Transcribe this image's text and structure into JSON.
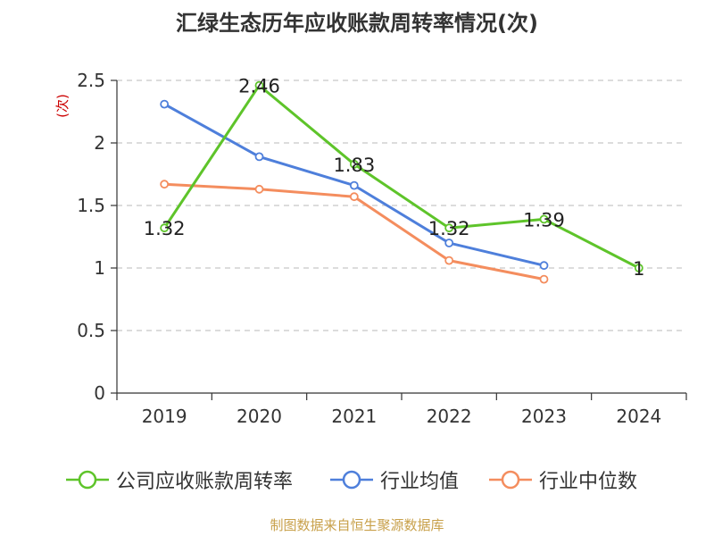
{
  "title": "汇绿生态历年应收账款周转率情况(次)",
  "source": "制图数据来自恒生聚源数据库",
  "colors": {
    "company": "#5ec42a",
    "industry_avg": "#4e7fdb",
    "industry_median": "#f48d5e",
    "grid": "#c8c8c8",
    "axis": "#333333",
    "ylabel": "#cc0000"
  },
  "chart_data": {
    "type": "line",
    "title": "汇绿生态历年应收账款周转率情况(次)",
    "xlabel": "",
    "ylabel": "(次)",
    "categories": [
      "2019",
      "2020",
      "2021",
      "2022",
      "2023",
      "2024"
    ],
    "ylim": [
      0,
      2.5
    ],
    "yticks": [
      "0",
      "0.5",
      "1",
      "1.5",
      "2",
      "2.5"
    ],
    "grid": true,
    "legend_position": "bottom",
    "series": [
      {
        "name": "公司应收账款周转率",
        "key": "company",
        "values": [
          1.32,
          2.46,
          1.83,
          1.32,
          1.39,
          1.0
        ],
        "labels": [
          "1.32",
          "2.46",
          "1.83",
          "1.32",
          "1.39",
          "1"
        ]
      },
      {
        "name": "行业均值",
        "key": "industry_avg",
        "values": [
          2.31,
          1.89,
          1.66,
          1.2,
          1.02,
          null
        ]
      },
      {
        "name": "行业中位数",
        "key": "industry_median",
        "values": [
          1.67,
          1.63,
          1.57,
          1.06,
          0.91,
          null
        ]
      }
    ]
  }
}
